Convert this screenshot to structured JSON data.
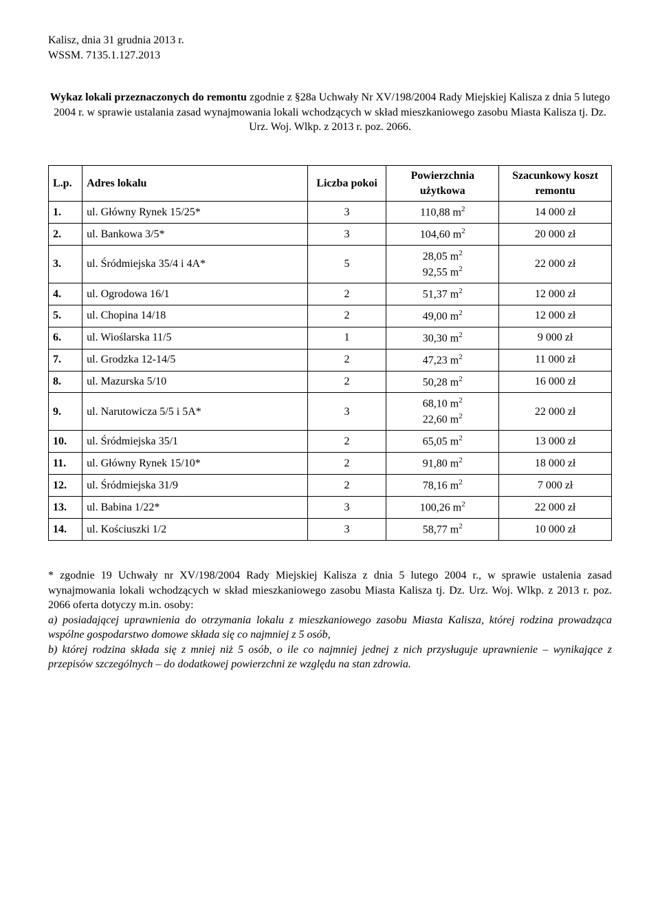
{
  "header": {
    "place_date": "Kalisz, dnia 31 grudnia 2013 r.",
    "ref": "WSSM. 7135.1.127.2013"
  },
  "intro": {
    "bold": "Wykaz lokali przeznaczonych do remontu",
    "rest": " zgodnie z §28a Uchwały Nr XV/198/2004 Rady Miejskiej Kalisza z dnia 5 lutego 2004 r. w sprawie ustalania zasad wynajmowania lokali wchodzących w skład mieszkaniowego zasobu Miasta Kalisza tj. Dz. Urz. Woj. Wlkp. z 2013 r. poz. 2066."
  },
  "table": {
    "columns": [
      "L.p.",
      "Adres lokalu",
      "Liczba pokoi",
      "Powierzchnia użytkowa",
      "Szacunkowy koszt remontu"
    ],
    "rows": [
      {
        "lp": "1.",
        "addr": "ul. Główny Rynek 15/25*",
        "rooms": "3",
        "area": [
          "110,88 m²"
        ],
        "cost": "14 000 zł"
      },
      {
        "lp": "2.",
        "addr": "ul. Bankowa 3/5*",
        "rooms": "3",
        "area": [
          "104,60 m²"
        ],
        "cost": "20 000 zł"
      },
      {
        "lp": "3.",
        "addr": "ul. Śródmiejska 35/4 i 4A*",
        "rooms": "5",
        "area": [
          "28,05 m²",
          "92,55 m²"
        ],
        "cost": "22 000 zł"
      },
      {
        "lp": "4.",
        "addr": "ul. Ogrodowa 16/1",
        "rooms": "2",
        "area": [
          "51,37 m²"
        ],
        "cost": "12 000 zł"
      },
      {
        "lp": "5.",
        "addr": "ul. Chopina 14/18",
        "rooms": "2",
        "area": [
          "49,00 m²"
        ],
        "cost": "12 000 zł"
      },
      {
        "lp": "6.",
        "addr": "ul. Wioślarska 11/5",
        "rooms": "1",
        "area": [
          "30,30 m²"
        ],
        "cost": "9 000 zł"
      },
      {
        "lp": "7.",
        "addr": "ul. Grodzka 12-14/5",
        "rooms": "2",
        "area": [
          "47,23 m²"
        ],
        "cost": "11 000 zł"
      },
      {
        "lp": "8.",
        "addr": "ul. Mazurska 5/10",
        "rooms": "2",
        "area": [
          "50,28 m²"
        ],
        "cost": "16 000 zł"
      },
      {
        "lp": "9.",
        "addr": "ul. Narutowicza 5/5 i 5A*",
        "rooms": "3",
        "area": [
          "68,10 m²",
          "22,60 m²"
        ],
        "cost": "22 000 zł"
      },
      {
        "lp": "10.",
        "addr": "ul. Śródmiejska 35/1",
        "rooms": "2",
        "area": [
          "65,05 m²"
        ],
        "cost": "13 000 zł"
      },
      {
        "lp": "11.",
        "addr": "ul. Główny Rynek 15/10*",
        "rooms": "2",
        "area": [
          "91,80 m²"
        ],
        "cost": "18 000 zł"
      },
      {
        "lp": "12.",
        "addr": "ul. Śródmiejska 31/9",
        "rooms": "2",
        "area": [
          "78,16 m²"
        ],
        "cost": "7 000 zł"
      },
      {
        "lp": "13.",
        "addr": "ul. Babina 1/22*",
        "rooms": "3",
        "area": [
          "100,26 m²"
        ],
        "cost": "22 000 zł"
      },
      {
        "lp": "14.",
        "addr": "ul. Kościuszki 1/2",
        "rooms": "3",
        "area": [
          "58,77 m²"
        ],
        "cost": "10 000 zł"
      }
    ]
  },
  "footnote": {
    "plain": "* zgodnie 19 Uchwały nr XV/198/2004 Rady Miejskiej Kalisza z dnia 5 lutego 2004 r., w sprawie ustalenia zasad wynajmowania lokali wchodzących w skład mieszkaniowego zasobu Miasta Kalisza tj. Dz. Urz. Woj. Wlkp. z 2013 r. poz. 2066 oferta dotyczy m.in. osoby:",
    "a": "a) posiadającej uprawnienia do otrzymania lokalu z mieszkaniowego zasobu Miasta Kalisza, której rodzina prowadząca wspólne gospodarstwo domowe składa się co najmniej z 5 osób,",
    "b": "b) której rodzina składa się z mniej niż 5 osób, o ile co najmniej jednej z nich przysługuje uprawnienie – wynikające z przepisów szczególnych – do dodatkowej powierzchni ze względu na stan zdrowia."
  }
}
